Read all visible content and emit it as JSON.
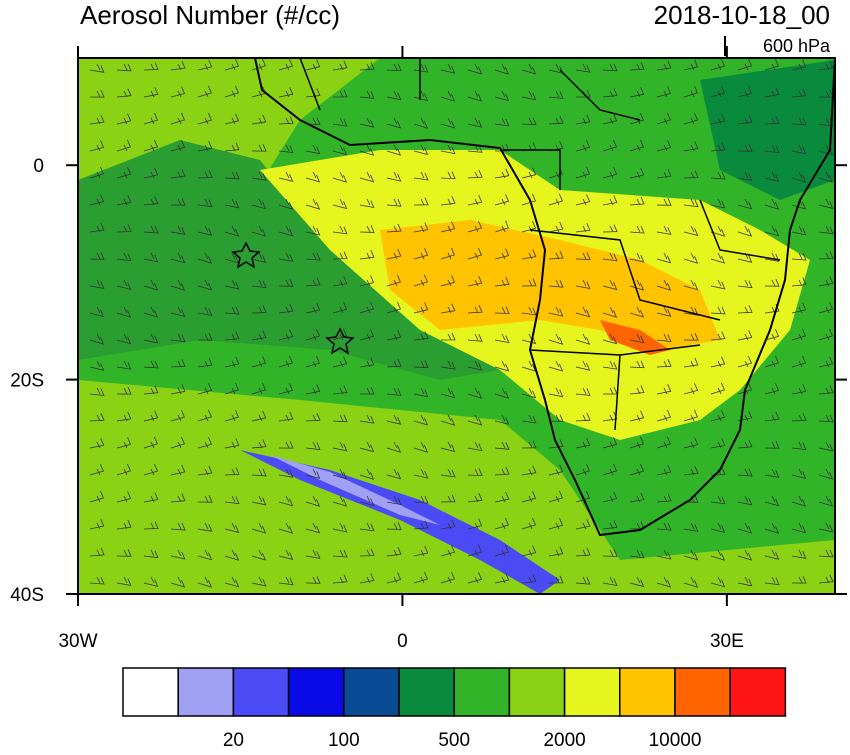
{
  "header": {
    "title": "Aerosol Number (#/cc)",
    "date": "2018-10-18_00",
    "level": "600 hPa"
  },
  "map": {
    "lon_range": [
      -30,
      40
    ],
    "lat_range": [
      -40,
      10
    ],
    "lon_ticks": [
      {
        "value": -30,
        "label": "30W"
      },
      0,
      {
        "value": 30,
        "label": "30E"
      }
    ],
    "lat_ticks": [
      0,
      {
        "value": -20,
        "label": "20S"
      },
      {
        "value": -40,
        "label": "40S"
      }
    ]
  },
  "colorbar": {
    "colors": [
      "#ffffff",
      "#a0a0f5",
      "#4b4bf5",
      "#0a0ae6",
      "#0a4b96",
      "#0a8a3c",
      "#32b428",
      "#8cd214",
      "#e6f51e",
      "#ffc300",
      "#ff6400",
      "#ff1414"
    ],
    "labels": [
      "20",
      "100",
      "500",
      "2000",
      "10000"
    ]
  }
}
